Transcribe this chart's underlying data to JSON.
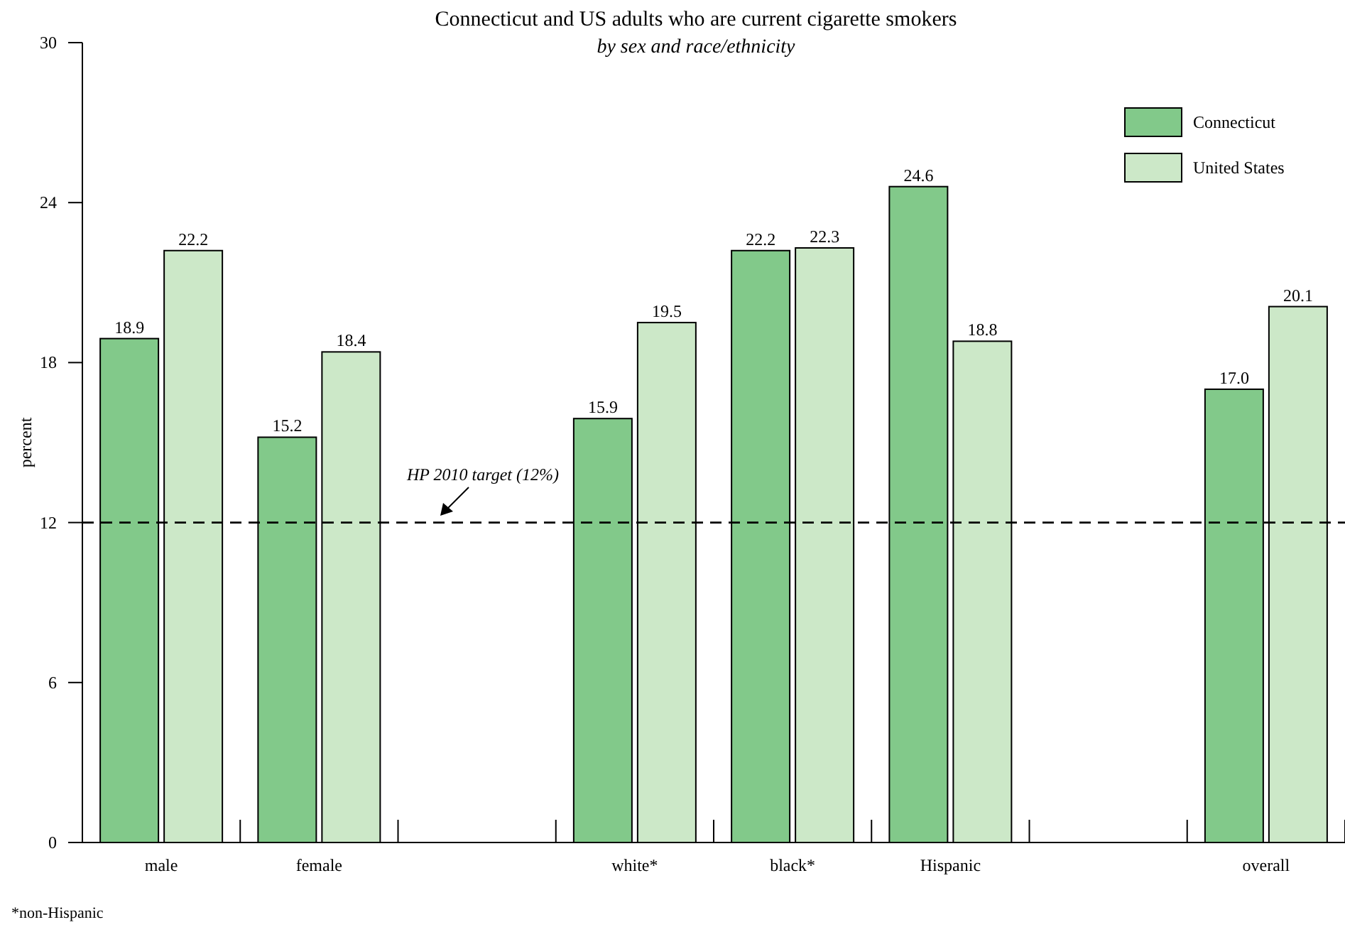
{
  "chart_data": {
    "type": "bar",
    "title": "Connecticut and US adults who are current cigarette smokers",
    "subtitle": "by sex and race/ethnicity",
    "ylabel": "percent",
    "categories": [
      "male",
      "female",
      null,
      "white*",
      "black*",
      "Hispanic",
      null,
      "overall"
    ],
    "series": [
      {
        "name": "Connecticut",
        "color": "#82c98a",
        "values": [
          18.9,
          15.2,
          null,
          15.9,
          22.2,
          24.6,
          null,
          17.0
        ],
        "value_labels": [
          "18.9",
          "15.2",
          null,
          "15.9",
          "22.2",
          "24.6",
          null,
          "17.0"
        ]
      },
      {
        "name": "United States",
        "color": "#cce8c8",
        "values": [
          22.2,
          18.4,
          null,
          19.5,
          22.3,
          18.8,
          null,
          20.1
        ],
        "value_labels": [
          "22.2",
          "18.4",
          null,
          "19.5",
          "22.3",
          "18.8",
          null,
          "20.1"
        ]
      }
    ],
    "ylim": [
      0,
      30
    ],
    "yticks": [
      0,
      6,
      12,
      18,
      24,
      30
    ],
    "grid": false,
    "legend": "top right",
    "ref_lines": [
      {
        "axis": "y",
        "value": 12,
        "label": "HP 2010 target (12%)",
        "line_style": "dashed",
        "color": "#000000"
      }
    ],
    "annotations": [
      "*non-Hispanic"
    ]
  }
}
